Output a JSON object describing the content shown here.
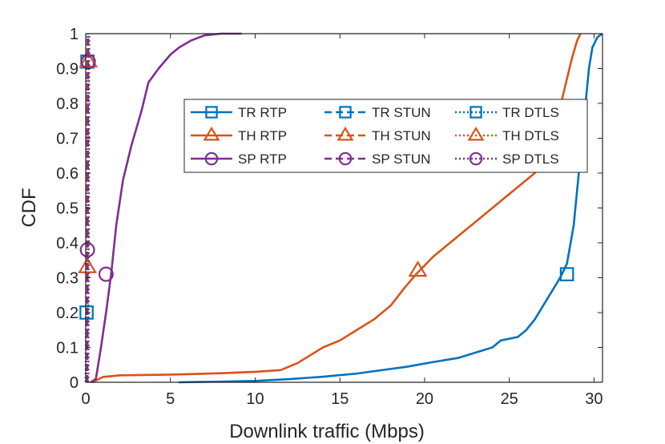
{
  "chart_data": {
    "type": "line",
    "title": "",
    "xlabel": "Downlink traffic (Mbps)",
    "ylabel": "CDF",
    "xlim": [
      0,
      30.5
    ],
    "ylim": [
      0,
      1
    ],
    "x_ticks": [
      0,
      5,
      10,
      15,
      20,
      25,
      30
    ],
    "y_ticks": [
      0,
      0.1,
      0.2,
      0.3,
      0.4,
      0.5,
      0.6,
      0.7,
      0.8,
      0.9,
      1
    ],
    "y_tick_labels": [
      "0",
      "0.1",
      "0.2",
      "0.3",
      "0.4",
      "0.5",
      "0.6",
      "0.7",
      "0.8",
      "0.9",
      "1"
    ],
    "grid": false,
    "legend_position": "upper-right inside",
    "colors": {
      "TR": "#0072BD",
      "TH": "#D95319",
      "SP": "#7E2F8E",
      "axis": "#262626"
    },
    "series": [
      {
        "name": "TR RTP",
        "group": "TR",
        "style": "solid",
        "marker": "square",
        "points": [
          [
            5.5,
            0
          ],
          [
            8,
            0.002
          ],
          [
            10,
            0.004
          ],
          [
            12,
            0.009
          ],
          [
            14,
            0.016
          ],
          [
            16,
            0.025
          ],
          [
            17.5,
            0.035
          ],
          [
            19,
            0.045
          ],
          [
            20.5,
            0.058
          ],
          [
            22,
            0.07
          ],
          [
            23,
            0.085
          ],
          [
            24,
            0.1
          ],
          [
            24.5,
            0.12
          ],
          [
            25.5,
            0.13
          ],
          [
            26,
            0.15
          ],
          [
            26.5,
            0.18
          ],
          [
            27,
            0.22
          ],
          [
            27.5,
            0.26
          ],
          [
            28,
            0.3
          ],
          [
            28.4,
            0.34
          ],
          [
            28.8,
            0.45
          ],
          [
            29.1,
            0.6
          ],
          [
            29.3,
            0.7
          ],
          [
            29.5,
            0.8
          ],
          [
            29.7,
            0.9
          ],
          [
            29.9,
            0.96
          ],
          [
            30.2,
            0.99
          ],
          [
            30.5,
            1.0
          ]
        ],
        "markers": [
          [
            28.4,
            0.31
          ]
        ]
      },
      {
        "name": "TR STUN",
        "group": "TR",
        "style": "dashed",
        "marker": "square",
        "points": [
          [
            0.05,
            0
          ],
          [
            0.07,
            0.5
          ],
          [
            0.1,
            1.0
          ]
        ],
        "markers": [
          [
            0.05,
            0.2
          ]
        ]
      },
      {
        "name": "TR DTLS",
        "group": "TR",
        "style": "dotted",
        "marker": "square",
        "points": [
          [
            0.0,
            0
          ],
          [
            0.05,
            0.5
          ],
          [
            0.1,
            1.0
          ]
        ],
        "markers": [
          [
            0.1,
            0.92
          ]
        ]
      },
      {
        "name": "TH RTP",
        "group": "TH",
        "style": "solid",
        "marker": "triangle",
        "points": [
          [
            0.4,
            0
          ],
          [
            1,
            0.015
          ],
          [
            2,
            0.02
          ],
          [
            5,
            0.022
          ],
          [
            8,
            0.026
          ],
          [
            10,
            0.03
          ],
          [
            11.5,
            0.035
          ],
          [
            12.5,
            0.055
          ],
          [
            13,
            0.07
          ],
          [
            14,
            0.1
          ],
          [
            15,
            0.12
          ],
          [
            16,
            0.15
          ],
          [
            17,
            0.18
          ],
          [
            18,
            0.22
          ],
          [
            18.8,
            0.27
          ],
          [
            19.5,
            0.31
          ],
          [
            20.5,
            0.36
          ],
          [
            21.5,
            0.4
          ],
          [
            22.5,
            0.44
          ],
          [
            23.5,
            0.48
          ],
          [
            24.5,
            0.52
          ],
          [
            25.5,
            0.56
          ],
          [
            26.5,
            0.6
          ],
          [
            27.2,
            0.66
          ],
          [
            27.8,
            0.75
          ],
          [
            28.3,
            0.85
          ],
          [
            28.7,
            0.93
          ],
          [
            29.0,
            0.98
          ],
          [
            29.2,
            1.0
          ]
        ],
        "markers": [
          [
            19.6,
            0.32
          ]
        ]
      },
      {
        "name": "TH STUN",
        "group": "TH",
        "style": "dashed",
        "marker": "triangle",
        "points": [
          [
            0.05,
            0
          ],
          [
            0.08,
            0.5
          ],
          [
            0.12,
            1.0
          ]
        ],
        "markers": [
          [
            0.1,
            0.33
          ]
        ]
      },
      {
        "name": "TH DTLS",
        "group": "TH",
        "style": "dotted",
        "marker": "triangle",
        "points": [
          [
            0.1,
            0
          ],
          [
            0.12,
            0.5
          ],
          [
            0.15,
            1.0
          ]
        ],
        "markers": [
          [
            0.15,
            0.92
          ]
        ]
      },
      {
        "name": "SP RTP",
        "group": "SP",
        "style": "solid",
        "marker": "circle",
        "points": [
          [
            0.3,
            0
          ],
          [
            0.6,
            0.01
          ],
          [
            0.9,
            0.1
          ],
          [
            1.2,
            0.2
          ],
          [
            1.5,
            0.31
          ],
          [
            1.8,
            0.45
          ],
          [
            2.2,
            0.58
          ],
          [
            2.7,
            0.68
          ],
          [
            3.3,
            0.78
          ],
          [
            3.7,
            0.86
          ],
          [
            4.3,
            0.9
          ],
          [
            5,
            0.94
          ],
          [
            5.5,
            0.96
          ],
          [
            6.2,
            0.98
          ],
          [
            7,
            0.995
          ],
          [
            8,
            1.0
          ],
          [
            9.2,
            1.0
          ]
        ],
        "markers": [
          [
            1.2,
            0.31
          ]
        ]
      },
      {
        "name": "SP STUN",
        "group": "SP",
        "style": "dashed",
        "marker": "circle",
        "points": [
          [
            0.1,
            0
          ],
          [
            0.12,
            0.5
          ],
          [
            0.15,
            1.0
          ]
        ],
        "markers": [
          [
            0.1,
            0.38
          ]
        ]
      },
      {
        "name": "SP DTLS",
        "group": "SP",
        "style": "dotted",
        "marker": "circle",
        "points": [
          [
            0.15,
            0
          ],
          [
            0.18,
            0.5
          ],
          [
            0.2,
            1.0
          ]
        ],
        "markers": [
          [
            0.15,
            0.92
          ]
        ]
      }
    ]
  }
}
